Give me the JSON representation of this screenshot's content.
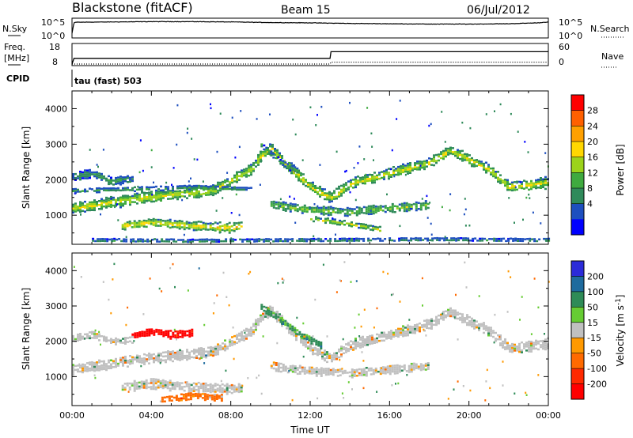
{
  "header": {
    "title": "Blackstone (fitACF)",
    "beam": "Beam 15",
    "date": "06/Jul/2012"
  },
  "top_panel": {
    "left_label": "N.Sky",
    "right_label": "N.Search",
    "left_ticks": [
      "10^5",
      "10^0"
    ],
    "right_ticks": [
      "10^5",
      "10^0"
    ]
  },
  "freq_panel": {
    "label_line1": "Freq.",
    "label_line2": "[MHz]",
    "left_ticks": [
      "18",
      "8"
    ],
    "right_ticks": [
      "60",
      "0"
    ],
    "right_label": "Nave",
    "cpid_label": "CPID",
    "cpid_value": "tau (fast) 503"
  },
  "colors": {
    "power_scale": [
      "#0000ff",
      "#1e4fbf",
      "#2f8a5a",
      "#3faa3f",
      "#9cd31a",
      "#ffd700",
      "#ffa000",
      "#ff6000",
      "#ff0000"
    ],
    "velocity_scale": [
      "#2b2bd9",
      "#1e6b9e",
      "#2e8b57",
      "#66cc33",
      "#c8c8c8",
      "#ff9900",
      "#ff6a00",
      "#ff2a00",
      "#ff0000"
    ],
    "ground_scatter": "#c0c0c0"
  },
  "chart_data": [
    {
      "type": "line",
      "title": "N.Sky / N.Search",
      "x_unit": "hours UT",
      "x": [
        0,
        0.1,
        0.2,
        2,
        4,
        6,
        8,
        10,
        12,
        13,
        14,
        16,
        18,
        20,
        22,
        23.5,
        24
      ],
      "series": [
        {
          "name": "N.Sky",
          "values": [
            1,
            4.6,
            4.7,
            4.8,
            4.9,
            4.9,
            4.8,
            4.6,
            4.5,
            4.4,
            4.3,
            4.2,
            4.1,
            4.1,
            4.2,
            4.5,
            4.8
          ]
        }
      ],
      "ylim": [
        0,
        5
      ],
      "yscale": "log10 counts"
    },
    {
      "type": "line",
      "title": "Freq. / Nave",
      "x_unit": "hours UT",
      "x": [
        0,
        0.1,
        13,
        13.05,
        24
      ],
      "series": [
        {
          "name": "Freq.",
          "values": [
            8,
            11,
            11,
            14.5,
            14.5
          ]
        },
        {
          "name": "Nave",
          "values": [
            8,
            8,
            8,
            9,
            9
          ]
        }
      ],
      "ylim": [
        8,
        18
      ]
    },
    {
      "type": "heatmap",
      "title": "Power",
      "xlabel": "Time UT",
      "ylabel": "Slant Range [km]",
      "x_ticks": [
        "00:00",
        "04:00",
        "08:00",
        "12:00",
        "16:00",
        "20:00",
        "00:00"
      ],
      "xlim": [
        0,
        24
      ],
      "y_ticks": [
        1000,
        2000,
        3000,
        4000
      ],
      "ylim": [
        180,
        4500
      ],
      "colorbar_label": "Power [dB]",
      "colorbar_ticks": [
        4,
        8,
        12,
        16,
        20,
        24,
        28
      ],
      "colorbar_range": [
        0,
        30
      ],
      "bands": [
        {
          "x": [
            0,
            3.5,
            7,
            9,
            9.5,
            10,
            10.5,
            12,
            13,
            14,
            16,
            18,
            19,
            21,
            22,
            23.5,
            24
          ],
          "y": [
            1200,
            1500,
            1700,
            2300,
            2700,
            2900,
            2600,
            1800,
            1500,
            1900,
            2200,
            2500,
            2850,
            2300,
            1800,
            1900,
            1950
          ],
          "width": 260,
          "power": 18
        },
        {
          "x": [
            0,
            1,
            2,
            3
          ],
          "y": [
            2100,
            2200,
            1950,
            2050
          ],
          "width": 200,
          "power": 9
        },
        {
          "x": [
            0,
            3,
            6,
            9
          ],
          "y": [
            1700,
            1750,
            1800,
            1750
          ],
          "width": 90,
          "power": 11
        },
        {
          "x": [
            2.5,
            4,
            6,
            8,
            8.5
          ],
          "y": [
            700,
            800,
            700,
            650,
            700
          ],
          "width": 230,
          "power": 20
        },
        {
          "x": [
            10,
            12,
            14,
            16,
            18
          ],
          "y": [
            1300,
            1150,
            1100,
            1200,
            1300
          ],
          "width": 200,
          "power": 14
        },
        {
          "x": [
            12,
            14,
            15.5
          ],
          "y": [
            900,
            750,
            600
          ],
          "width": 130,
          "power": 17
        },
        {
          "x": [
            1,
            6,
            12,
            18,
            24
          ],
          "y": [
            300,
            280,
            300,
            320,
            300
          ],
          "width": 70,
          "power": 10
        },
        {
          "x": [
            9.5,
            10.5,
            11.5
          ],
          "y": [
            3000,
            2500,
            2200
          ],
          "width": 140,
          "power": 10
        }
      ]
    },
    {
      "type": "heatmap",
      "title": "Velocity",
      "xlabel": "Time UT",
      "ylabel": "Slant Range [km]",
      "x_ticks": [
        "00:00",
        "04:00",
        "08:00",
        "12:00",
        "16:00",
        "20:00",
        "00:00"
      ],
      "xlim": [
        0,
        24
      ],
      "y_ticks": [
        1000,
        2000,
        3000,
        4000
      ],
      "ylim": [
        180,
        4500
      ],
      "colorbar_label": "Velocity [m s^-1]",
      "colorbar_ticks": [
        200,
        100,
        50,
        15,
        -15,
        -50,
        -100,
        -200
      ],
      "bands": [
        {
          "x": [
            0,
            3.5,
            7,
            9,
            9.5,
            10,
            10.5,
            12,
            13,
            14,
            16,
            18,
            19,
            21,
            22,
            23.5,
            24
          ],
          "y": [
            1200,
            1500,
            1700,
            2300,
            2700,
            2900,
            2600,
            1800,
            1500,
            1900,
            2200,
            2500,
            2850,
            2300,
            1800,
            1900,
            1950
          ],
          "width": 260,
          "velocity": 0
        },
        {
          "x": [
            2.5,
            4,
            6,
            8,
            8.5
          ],
          "y": [
            700,
            800,
            700,
            650,
            700
          ],
          "width": 230,
          "velocity": 0
        },
        {
          "x": [
            10,
            12,
            14,
            16,
            18
          ],
          "y": [
            1300,
            1150,
            1100,
            1200,
            1300
          ],
          "width": 200,
          "velocity": 0
        },
        {
          "x": [
            3,
            4,
            5,
            6
          ],
          "y": [
            2150,
            2300,
            2200,
            2250
          ],
          "width": 180,
          "velocity": -200
        },
        {
          "x": [
            9.5,
            10.5,
            11.5,
            12.5
          ],
          "y": [
            3000,
            2600,
            2200,
            1900
          ],
          "width": 150,
          "velocity": 40
        },
        {
          "x": [
            0,
            1,
            2,
            3
          ],
          "y": [
            2100,
            2200,
            2000,
            2050
          ],
          "width": 160,
          "velocity": 0
        },
        {
          "x": [
            4.5,
            6,
            7.5
          ],
          "y": [
            350,
            450,
            400
          ],
          "width": 150,
          "velocity": -60
        }
      ]
    }
  ]
}
